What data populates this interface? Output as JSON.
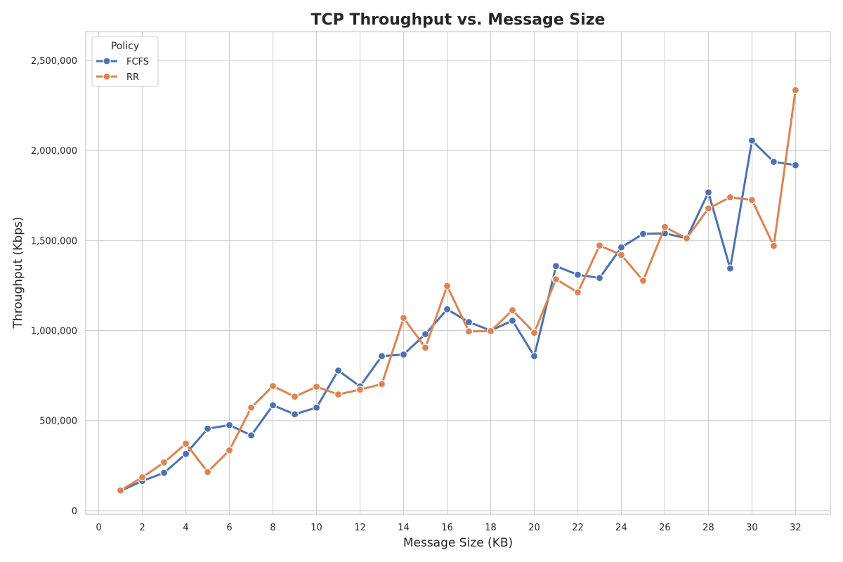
{
  "chart_data": {
    "type": "line",
    "title": "TCP Throughput vs. Message Size",
    "xlabel": "Message Size (KB)",
    "ylabel": "Throughput (Kbps)",
    "xlim": [
      -0.6,
      33.6
    ],
    "ylim": [
      -20000,
      2660000
    ],
    "xticks": [
      0,
      2,
      4,
      6,
      8,
      10,
      12,
      14,
      16,
      18,
      20,
      22,
      24,
      26,
      28,
      30,
      32
    ],
    "xtick_labels": [
      "0",
      "2",
      "4",
      "6",
      "8",
      "10",
      "12",
      "14",
      "16",
      "18",
      "20",
      "22",
      "24",
      "26",
      "28",
      "30",
      "32"
    ],
    "yticks": [
      0,
      500000,
      1000000,
      1500000,
      2000000,
      2500000
    ],
    "ytick_labels": [
      "0",
      "500,000",
      "1,000,000",
      "1,500,000",
      "2,000,000",
      "2,500,000"
    ],
    "grid": true,
    "legend": {
      "title": "Policy",
      "position": "top-left"
    },
    "x": [
      1,
      2,
      3,
      4,
      5,
      6,
      7,
      8,
      9,
      10,
      11,
      12,
      13,
      14,
      15,
      16,
      17,
      18,
      19,
      20,
      21,
      22,
      23,
      24,
      25,
      26,
      27,
      28,
      29,
      30,
      31,
      32
    ],
    "series": [
      {
        "name": "FCFS",
        "color": "#4c72b0",
        "values": [
          110000,
          165000,
          210000,
          315000,
          455000,
          475000,
          418000,
          585000,
          535000,
          572000,
          778000,
          690000,
          858000,
          867000,
          980000,
          1118000,
          1047000,
          1000000,
          1055000,
          858000,
          1358000,
          1310000,
          1292000,
          1462000,
          1537000,
          1540000,
          1512000,
          1767000,
          1345000,
          2055000,
          1937000,
          1918000
        ]
      },
      {
        "name": "RR",
        "color": "#dd8452",
        "values": [
          112000,
          185000,
          268000,
          372000,
          215000,
          335000,
          572000,
          692000,
          633000,
          688000,
          645000,
          672000,
          703000,
          1070000,
          905000,
          1248000,
          995000,
          997000,
          1113000,
          988000,
          1285000,
          1212000,
          1472000,
          1420000,
          1277000,
          1575000,
          1512000,
          1678000,
          1740000,
          1725000,
          1470000,
          2335000
        ]
      }
    ]
  }
}
